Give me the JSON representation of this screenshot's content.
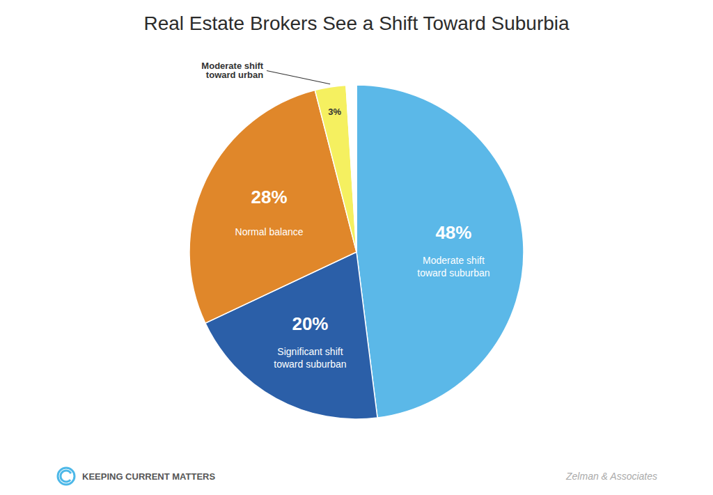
{
  "chart_data": {
    "type": "pie",
    "title": "Real Estate Brokers See a Shift Toward Suburbia",
    "categories": [
      "Moderate shift\ntoward suburban",
      "Significant shift\ntoward suburban",
      "Normal balance",
      "Moderate shift\ntoward urban",
      null
    ],
    "values": [
      48,
      20,
      28,
      3,
      1
    ],
    "value_labels": [
      "48%",
      "20%",
      "28%",
      "3%",
      null
    ],
    "colors": [
      "#5BB8E8",
      "#2B5FA8",
      "#E0872A",
      "#F5F060",
      "#FFFFFF"
    ],
    "data_labels": true,
    "source": "Zelman & Associates",
    "brand": "KEEPING CURRENT MATTERS"
  }
}
